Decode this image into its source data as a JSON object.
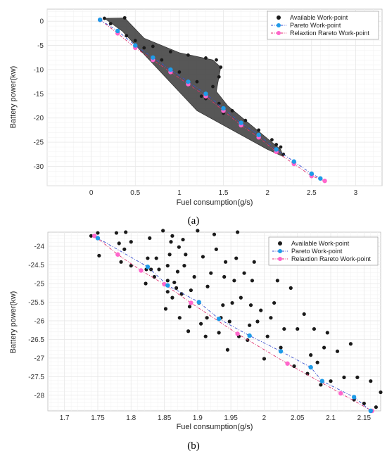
{
  "colors": {
    "available": "#1a1a1a",
    "pareto": "#1f9be8",
    "pareto_line": "#3a4fcf",
    "relax": "#ff66cc",
    "relax_line": "#e0306f",
    "grid": "#e8e8e8",
    "axis": "#7a7a7a"
  },
  "chart_data": [
    {
      "type": "scatter",
      "panel_label": "(a)",
      "xlabel": "Fuel consumption(g/s)",
      "ylabel": "Battery power(kw)",
      "xlim": [
        -0.5,
        3.3
      ],
      "ylim": [
        -34,
        2.5
      ],
      "xticks": [
        0,
        0.5,
        1,
        1.5,
        2,
        2.5,
        3
      ],
      "yticks": [
        0,
        -5,
        -10,
        -15,
        -20,
        -25,
        -30
      ],
      "grid": true,
      "legend_position": "top-right",
      "available_region": {
        "description_points": [
          [
            0.15,
            0.6
          ],
          [
            0.38,
            0.7
          ],
          [
            0.6,
            -3.5
          ],
          [
            1.0,
            -6.5
          ],
          [
            1.38,
            -8.0
          ],
          [
            1.47,
            -9.5
          ],
          [
            1.42,
            -14.5
          ],
          [
            1.55,
            -17.5
          ],
          [
            1.85,
            -22.0
          ],
          [
            2.15,
            -26.5
          ],
          [
            2.18,
            -28.0
          ],
          [
            2.0,
            -26.5
          ],
          [
            1.2,
            -18.5
          ],
          [
            0.35,
            -2.0
          ],
          [
            0.15,
            0.6
          ]
        ]
      },
      "series": [
        {
          "name": "Available Work-point",
          "style": "dots",
          "x": [
            0.15,
            0.38,
            0.22,
            0.3,
            0.5,
            0.7,
            0.9,
            1.1,
            1.3,
            1.42,
            1.47,
            1.45,
            1.38,
            1.25,
            1.45,
            1.6,
            1.75,
            1.9,
            2.05,
            2.15,
            2.18,
            0.4,
            0.6,
            0.8,
            1.0,
            1.2,
            1.3,
            1.5,
            1.7,
            1.9,
            2.1
          ],
          "y": [
            0.6,
            0.7,
            -0.5,
            -2.0,
            -4.0,
            -5.2,
            -6.3,
            -7.0,
            -7.6,
            -8.0,
            -9.5,
            -11.5,
            -13.5,
            -15.5,
            -17.0,
            -18.5,
            -20.5,
            -22.5,
            -24.5,
            -26.0,
            -27.5,
            -3.0,
            -5.5,
            -8.0,
            -10.5,
            -12.5,
            -16.0,
            -19.0,
            -21.5,
            -23.5,
            -25.5
          ]
        },
        {
          "name": "Pareto Work-point",
          "style": "dashdot",
          "x": [
            0.1,
            0.3,
            0.5,
            0.7,
            0.9,
            1.1,
            1.3,
            1.5,
            1.7,
            1.9,
            2.1,
            2.3,
            2.5,
            2.6
          ],
          "y": [
            0.3,
            -2.0,
            -5.0,
            -7.5,
            -10.0,
            -12.5,
            -15.0,
            -18.0,
            -21.0,
            -23.5,
            -26.5,
            -29.0,
            -31.5,
            -32.5
          ]
        },
        {
          "name": "Relaxtion Rareto Work-point",
          "style": "dashdot",
          "x": [
            0.1,
            0.3,
            0.5,
            0.7,
            0.9,
            1.1,
            1.3,
            1.5,
            1.7,
            1.9,
            2.1,
            2.3,
            2.5,
            2.65
          ],
          "y": [
            0.3,
            -2.5,
            -5.5,
            -8.0,
            -10.5,
            -13.0,
            -15.5,
            -18.5,
            -21.5,
            -24.0,
            -27.0,
            -29.5,
            -32.0,
            -33.0
          ]
        }
      ]
    },
    {
      "type": "scatter",
      "panel_label": "(b)",
      "xlabel": "Fuel consumption(g/s)",
      "ylabel": "Battery power(kw)",
      "xlim": [
        1.675,
        2.175
      ],
      "ylim": [
        -28.42,
        -23.62
      ],
      "xticks": [
        1.7,
        1.75,
        1.8,
        1.85,
        1.9,
        1.95,
        2,
        2.05,
        2.1,
        2.15
      ],
      "yticks": [
        -24,
        -24.5,
        -25,
        -25.5,
        -26,
        -26.5,
        -27,
        -27.5,
        -28
      ],
      "grid": true,
      "legend_position": "top-right",
      "series": [
        {
          "name": "Available Work-point",
          "style": "dots",
          "x": [
            1.74,
            1.75,
            1.752,
            1.778,
            1.782,
            1.785,
            1.79,
            1.792,
            1.8,
            1.8,
            1.822,
            1.823,
            1.825,
            1.828,
            1.83,
            1.835,
            1.838,
            1.842,
            1.848,
            1.852,
            1.855,
            1.855,
            1.855,
            1.858,
            1.86,
            1.862,
            1.862,
            1.865,
            1.868,
            1.87,
            1.872,
            1.873,
            1.876,
            1.878,
            1.88,
            1.882,
            1.886,
            1.888,
            1.89,
            1.895,
            1.9,
            1.902,
            1.905,
            1.908,
            1.912,
            1.914,
            1.915,
            1.92,
            1.925,
            1.928,
            1.932,
            1.935,
            1.938,
            1.94,
            1.942,
            1.945,
            1.948,
            1.952,
            1.955,
            1.958,
            1.96,
            1.962,
            1.965,
            1.97,
            1.975,
            1.978,
            1.98,
            1.982,
            1.985,
            1.99,
            1.995,
            2.0,
            2.005,
            2.01,
            2.015,
            2.02,
            2.025,
            2.03,
            2.04,
            2.045,
            2.05,
            2.06,
            2.065,
            2.07,
            2.075,
            2.08,
            2.085,
            2.09,
            2.095,
            2.1,
            2.11,
            2.12,
            2.13,
            2.135,
            2.14,
            2.15,
            2.16,
            2.168,
            2.175
          ],
          "y": [
            -23.72,
            -23.64,
            -24.25,
            -23.64,
            -23.92,
            -24.42,
            -24.08,
            -23.62,
            -24.52,
            -23.88,
            -25.0,
            -24.62,
            -24.32,
            -23.78,
            -24.62,
            -24.82,
            -24.32,
            -24.62,
            -23.58,
            -25.68,
            -25.22,
            -24.92,
            -24.52,
            -24.22,
            -23.88,
            -23.72,
            -25.38,
            -24.97,
            -25.12,
            -24.68,
            -24.02,
            -25.92,
            -25.28,
            -23.82,
            -24.52,
            -24.22,
            -26.28,
            -25.62,
            -25.18,
            -24.82,
            -23.58,
            -25.52,
            -26.08,
            -24.28,
            -26.42,
            -25.92,
            -25.08,
            -24.72,
            -23.68,
            -24.08,
            -26.32,
            -25.92,
            -25.58,
            -24.82,
            -24.42,
            -26.78,
            -26.02,
            -25.52,
            -24.92,
            -24.32,
            -23.62,
            -26.42,
            -25.38,
            -24.72,
            -26.52,
            -26.12,
            -25.58,
            -24.92,
            -24.42,
            -26.02,
            -25.72,
            -27.02,
            -26.42,
            -25.92,
            -25.52,
            -24.92,
            -26.72,
            -26.22,
            -25.12,
            -27.22,
            -26.22,
            -25.82,
            -27.42,
            -26.92,
            -26.22,
            -27.12,
            -27.72,
            -26.72,
            -26.32,
            -27.62,
            -26.82,
            -27.52,
            -26.62,
            -28.12,
            -27.52,
            -28.22,
            -27.62,
            -28.32,
            -27.92
          ]
        },
        {
          "name": "Pareto Work-point",
          "style": "dashdot",
          "x": [
            1.75,
            1.825,
            1.855,
            1.902,
            1.932,
            1.978,
            2.025,
            2.07,
            2.087,
            2.135,
            2.16
          ],
          "y": [
            -23.78,
            -24.55,
            -25.05,
            -25.5,
            -25.95,
            -26.4,
            -26.82,
            -27.25,
            -27.62,
            -28.05,
            -28.42
          ]
        },
        {
          "name": "Relaxtion Rareto Work-point",
          "style": "dashdot",
          "x": [
            1.745,
            1.78,
            1.815,
            1.85,
            1.89,
            1.96,
            2.035,
            2.115,
            2.162
          ],
          "y": [
            -23.72,
            -24.22,
            -24.65,
            -25.02,
            -25.52,
            -26.35,
            -27.15,
            -27.95,
            -28.42
          ]
        }
      ]
    }
  ]
}
